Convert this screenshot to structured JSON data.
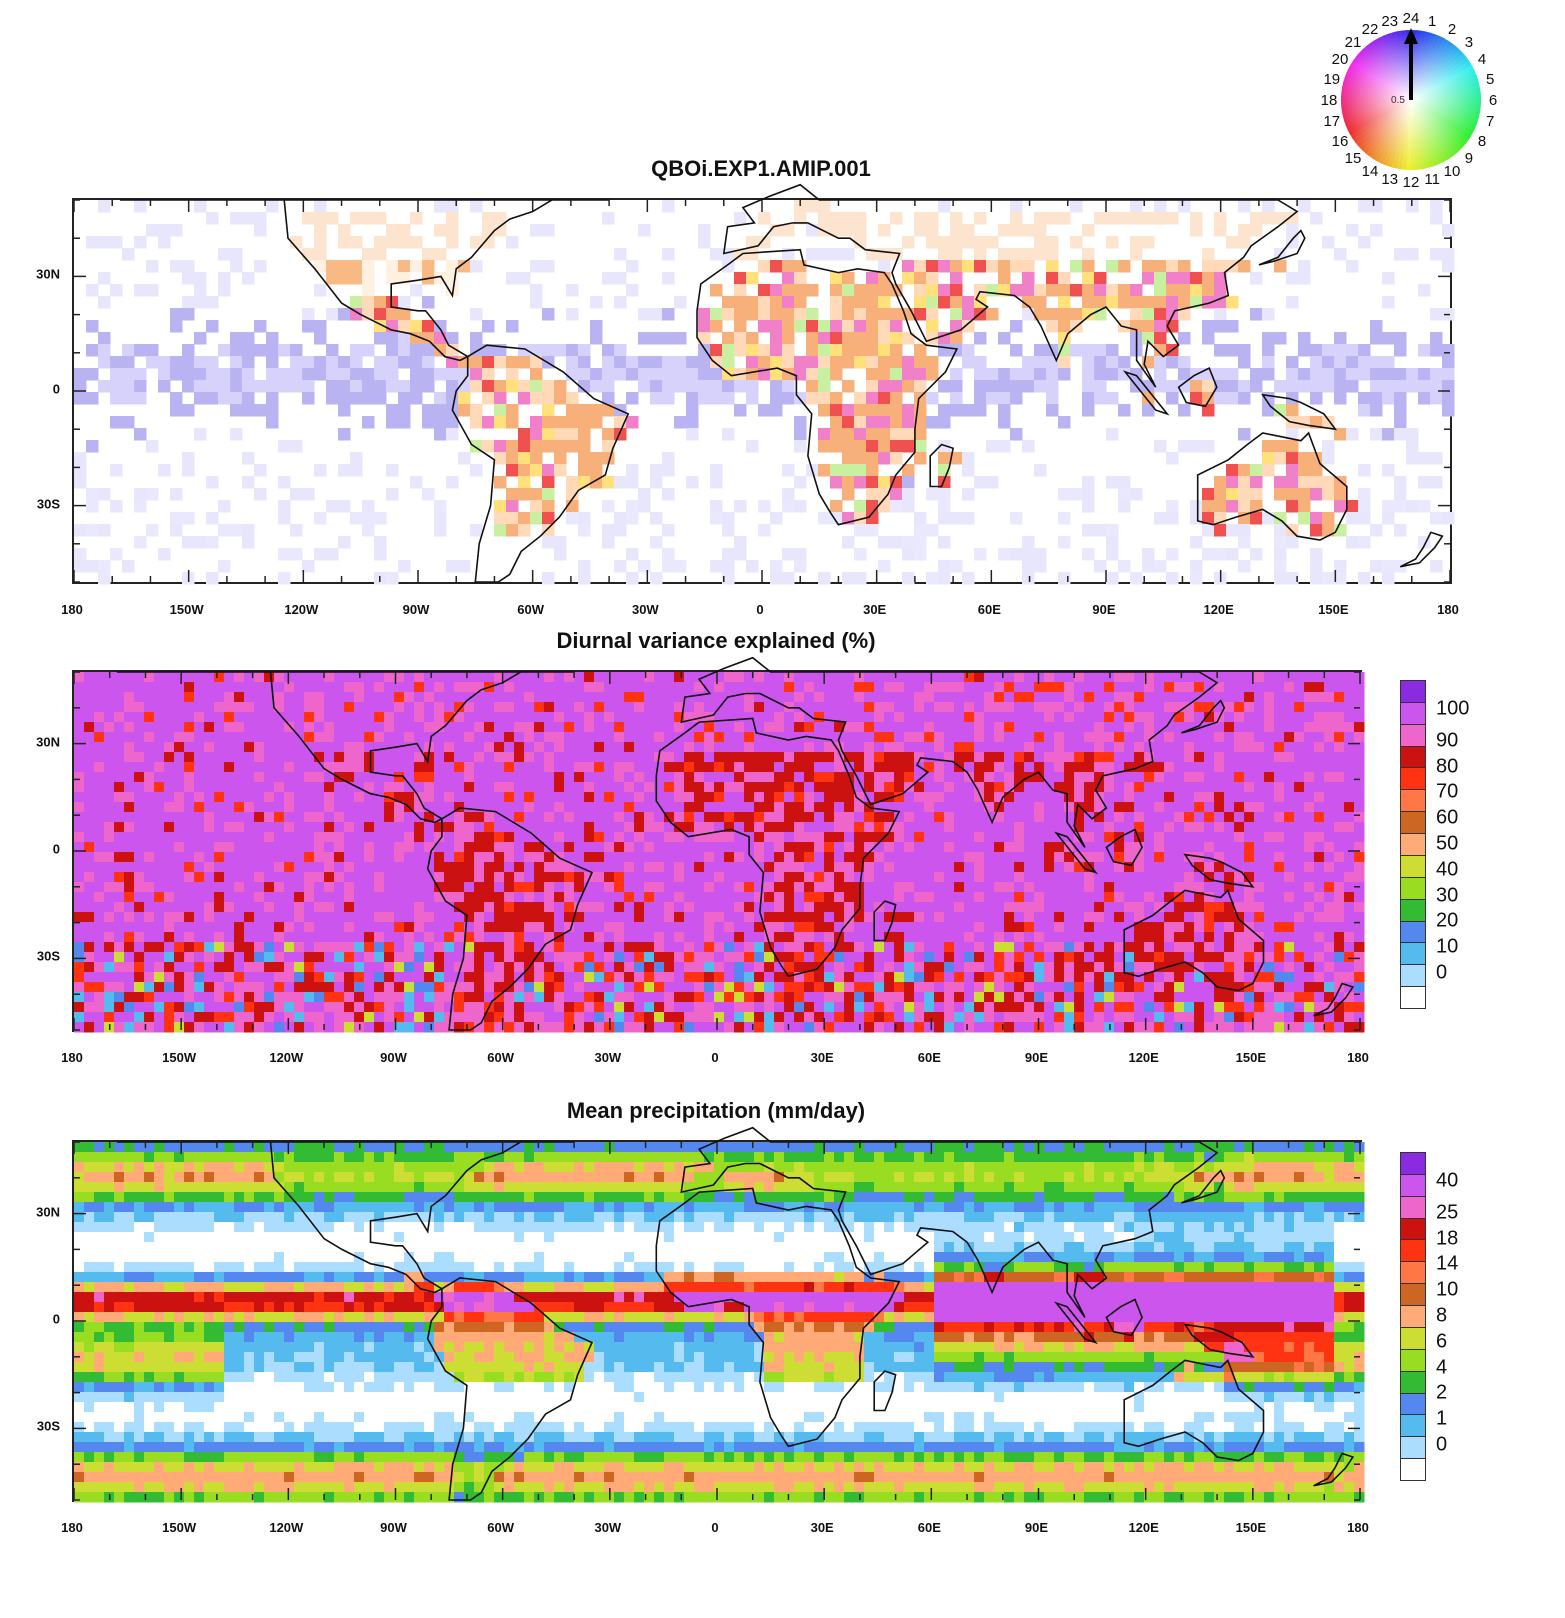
{
  "panels": [
    {
      "id": "phase",
      "title": "QBOi.EXP1.AMIP.001",
      "lon_labels": [
        "180",
        "150W",
        "120W",
        "90W",
        "60W",
        "30W",
        "0",
        "30E",
        "60E",
        "90E",
        "120E",
        "150E",
        "180"
      ],
      "lat_labels": [
        "30N",
        "0",
        "30S"
      ]
    },
    {
      "id": "variance",
      "title": "Diurnal variance explained (%)",
      "lon_labels": [
        "180",
        "150W",
        "120W",
        "90W",
        "60W",
        "30W",
        "0",
        "30E",
        "60E",
        "90E",
        "120E",
        "150E",
        "180"
      ],
      "lat_labels": [
        "30N",
        "0",
        "30S"
      ],
      "colorbar": {
        "labels": [
          "100",
          "90",
          "80",
          "70",
          "60",
          "50",
          "40",
          "30",
          "20",
          "10",
          "0"
        ],
        "colors": [
          "#8a2be2",
          "#cc55ee",
          "#ee66cc",
          "#cc1111",
          "#ff3311",
          "#ff7744",
          "#cc6622",
          "#ffaa77",
          "#ccdd33",
          "#99dd22",
          "#33bb33",
          "#5588ee",
          "#55bbee",
          "#aaddff",
          "#ffffff"
        ]
      }
    },
    {
      "id": "precip",
      "title": "Mean precipitation (mm/day)",
      "lon_labels": [
        "180",
        "150W",
        "120W",
        "90W",
        "60W",
        "30W",
        "0",
        "30E",
        "60E",
        "90E",
        "120E",
        "150E",
        "180"
      ],
      "lat_labels": [
        "30N",
        "0",
        "30S"
      ],
      "colorbar": {
        "labels": [
          "40",
          "25",
          "18",
          "14",
          "10",
          "8",
          "6",
          "4",
          "2",
          "1",
          "0"
        ],
        "colors": [
          "#8a2be2",
          "#cc55ee",
          "#ee66cc",
          "#cc1111",
          "#ff3311",
          "#ff7744",
          "#cc6622",
          "#ffaa77",
          "#ccdd33",
          "#99dd22",
          "#33bb33",
          "#5588ee",
          "#55bbee",
          "#aaddff",
          "#ffffff"
        ]
      }
    }
  ],
  "phase_wheel": {
    "hours": [
      "1",
      "2",
      "3",
      "4",
      "5",
      "6",
      "7",
      "8",
      "9",
      "10",
      "11",
      "12",
      "13",
      "14",
      "15",
      "16",
      "17",
      "18",
      "19",
      "20",
      "21",
      "22",
      "23",
      "24"
    ],
    "center_label": "0.5"
  }
}
